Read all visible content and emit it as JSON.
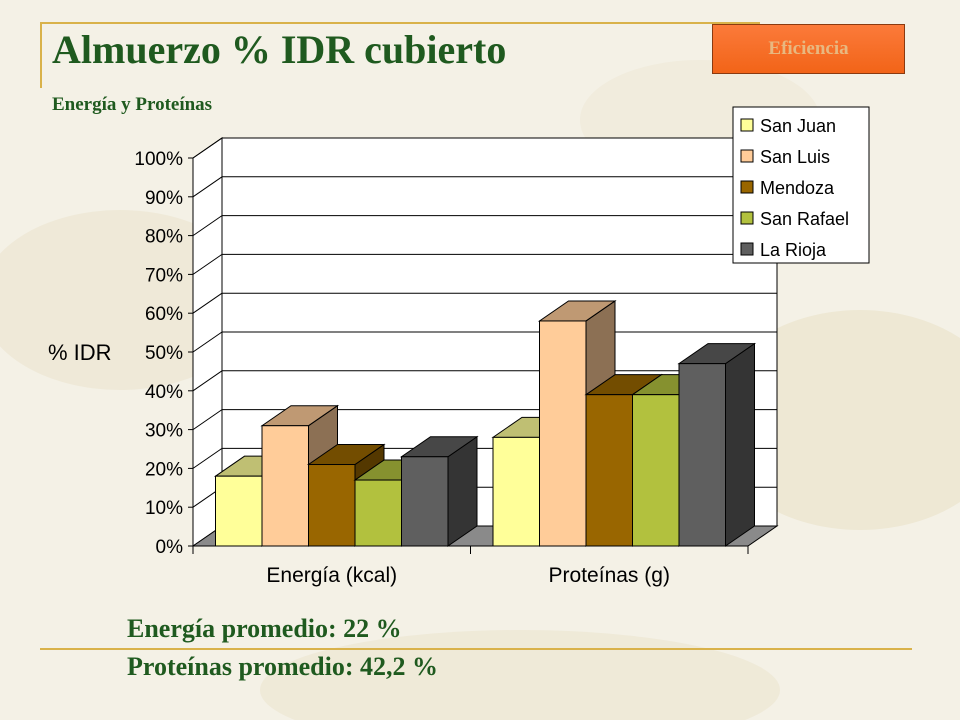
{
  "slide": {
    "title": "Almuerzo % IDR cubierto",
    "subtitle": "Energía y Proteínas",
    "badge": "Eficiencia",
    "summary": [
      "Energía promedio: 22 %",
      "Proteínas promedio: 42,2 %"
    ]
  },
  "colors": {
    "title": "#1f5a1f",
    "accent_line": "#d9b24a",
    "badge": "#f26418"
  },
  "chart_data": {
    "type": "bar",
    "style": "3d-clustered",
    "title": "",
    "ylabel": "% IDR",
    "xlabel": "",
    "ylim": [
      0,
      100
    ],
    "ytick_labels": [
      "0%",
      "10%",
      "20%",
      "30%",
      "40%",
      "50%",
      "60%",
      "70%",
      "80%",
      "90%",
      "100%"
    ],
    "categories": [
      "Energía (kcal)",
      "Proteínas (g)"
    ],
    "grid": true,
    "legend_position": "top-right",
    "series": [
      {
        "name": "San Juan",
        "color": "#ffff99",
        "values": [
          18,
          28
        ]
      },
      {
        "name": "San Luis",
        "color": "#ffcc99",
        "values": [
          31,
          58
        ]
      },
      {
        "name": "Mendoza",
        "color": "#996600",
        "values": [
          21,
          39
        ]
      },
      {
        "name": "San Rafael",
        "color": "#b2c13e",
        "values": [
          17,
          39
        ]
      },
      {
        "name": "La Rioja",
        "color": "#5f5f5f",
        "values": [
          23,
          47
        ]
      }
    ]
  }
}
